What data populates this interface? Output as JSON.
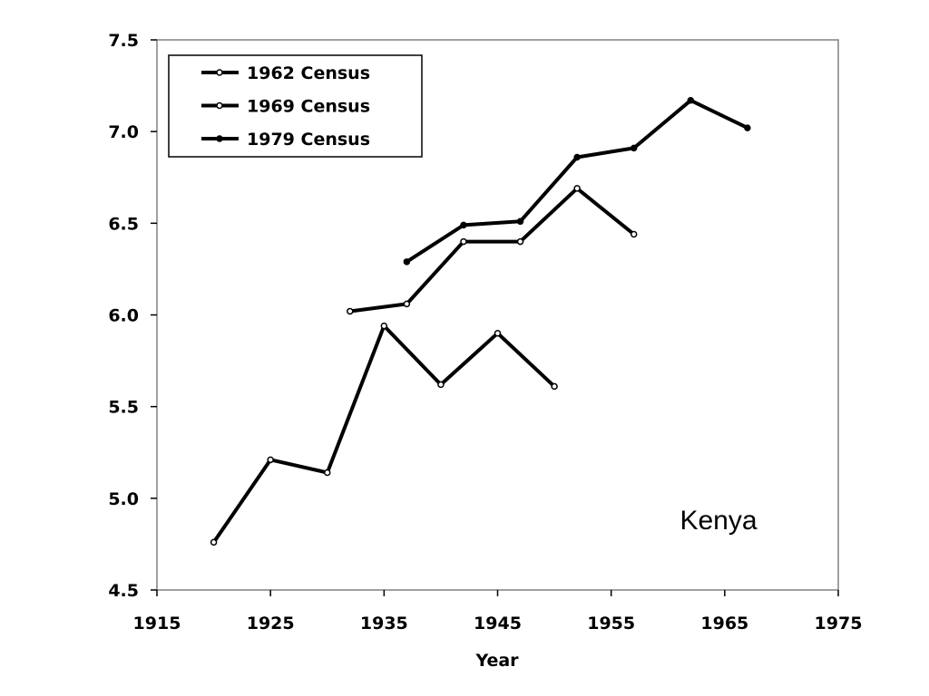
{
  "chart_data": {
    "type": "line",
    "title": "",
    "xlabel": "Year",
    "ylabel": "",
    "xlim": [
      1915,
      1975
    ],
    "ylim": [
      4.5,
      7.5
    ],
    "x_ticks": [
      "1915",
      "1925",
      "1935",
      "1945",
      "1955",
      "1965",
      "1975"
    ],
    "y_ticks": [
      "4.5",
      "5.0",
      "5.5",
      "6.0",
      "6.5",
      "7.0",
      "7.5"
    ],
    "grid": false,
    "legend_position": "top-left",
    "annotation": "Kenya",
    "series": [
      {
        "name": "1962 Census",
        "marker": "open-circle",
        "points": [
          [
            1920,
            4.76
          ],
          [
            1925,
            5.21
          ],
          [
            1930,
            5.14
          ],
          [
            1935,
            5.94
          ],
          [
            1940,
            5.62
          ],
          [
            1945,
            5.9
          ],
          [
            1950,
            5.61
          ]
        ]
      },
      {
        "name": "1969 Census",
        "marker": "open-circle",
        "points": [
          [
            1932,
            6.02
          ],
          [
            1937,
            6.06
          ],
          [
            1942,
            6.4
          ],
          [
            1947,
            6.4
          ],
          [
            1952,
            6.69
          ],
          [
            1957,
            6.44
          ]
        ]
      },
      {
        "name": "1979 Census",
        "marker": "filled-circle",
        "points": [
          [
            1937,
            6.29
          ],
          [
            1942,
            6.49
          ],
          [
            1947,
            6.51
          ],
          [
            1952,
            6.86
          ],
          [
            1957,
            6.91
          ],
          [
            1962,
            7.17
          ],
          [
            1967,
            7.02
          ]
        ]
      }
    ]
  }
}
